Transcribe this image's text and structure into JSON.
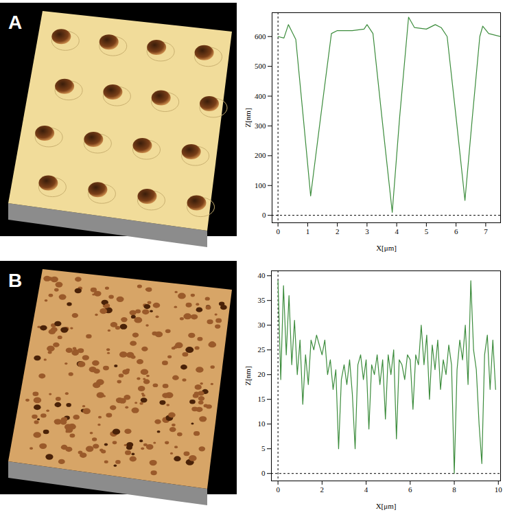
{
  "chart_data": [
    {
      "type": "line",
      "title": "A",
      "color": "#3c8c3c",
      "x_label": "X[μm]",
      "y_label": "Z[nm]",
      "x": [
        0,
        0.2,
        0.35,
        0.45,
        0.6,
        0.85,
        1.1,
        1.45,
        1.8,
        2.0,
        2.5,
        2.9,
        3.0,
        3.2,
        3.5,
        3.85,
        4.1,
        4.4,
        4.6,
        5.0,
        5.3,
        5.5,
        5.7,
        6.0,
        6.3,
        6.55,
        6.8,
        6.9,
        7.1,
        7.5
      ],
      "values": [
        600,
        595,
        640,
        620,
        590,
        330,
        65,
        340,
        610,
        620,
        620,
        625,
        640,
        610,
        330,
        10,
        330,
        665,
        630,
        625,
        640,
        630,
        600,
        330,
        50,
        330,
        600,
        635,
        610,
        600
      ],
      "xlim": [
        -0.2,
        7.5
      ],
      "ylim": [
        -25,
        680
      ],
      "xticks": [
        0,
        1,
        2,
        3,
        4,
        5,
        6,
        7
      ],
      "yticks": [
        0,
        100,
        200,
        300,
        400,
        500,
        600
      ]
    },
    {
      "type": "line",
      "title": "B",
      "color": "#3c8c3c",
      "x_label": "X[μm]",
      "y_label": "Z[nm]",
      "x": [
        0,
        0.125,
        0.25,
        0.375,
        0.5,
        0.625,
        0.75,
        0.875,
        1,
        1.125,
        1.25,
        1.375,
        1.5,
        1.625,
        1.75,
        1.875,
        2,
        2.125,
        2.25,
        2.375,
        2.5,
        2.625,
        2.75,
        2.875,
        3,
        3.125,
        3.25,
        3.375,
        3.5,
        3.625,
        3.75,
        3.875,
        4,
        4.125,
        4.25,
        4.375,
        4.5,
        4.625,
        4.75,
        4.875,
        5,
        5.125,
        5.25,
        5.375,
        5.5,
        5.625,
        5.75,
        5.875,
        6,
        6.125,
        6.25,
        6.375,
        6.5,
        6.625,
        6.75,
        6.875,
        7,
        7.125,
        7.25,
        7.375,
        7.5,
        7.625,
        7.75,
        7.875,
        8,
        8.125,
        8.25,
        8.375,
        8.5,
        8.625,
        8.75,
        8.875,
        9,
        9.125,
        9.25,
        9.375,
        9.5,
        9.625,
        9.75,
        9.875
      ],
      "values": [
        39,
        19,
        38,
        24,
        36,
        22,
        31,
        20,
        27,
        14,
        24,
        18,
        27,
        25,
        28,
        26,
        24,
        27,
        20,
        23,
        17,
        21,
        5,
        19,
        22,
        18,
        23,
        16,
        5,
        22,
        24,
        19,
        23,
        9,
        22,
        20,
        24,
        18,
        23,
        11,
        24,
        20,
        25,
        7,
        23,
        22,
        19,
        24,
        23,
        13,
        24,
        22,
        30,
        22,
        28,
        15,
        26,
        21,
        27,
        17,
        23,
        20,
        26,
        22,
        0,
        21,
        27,
        23,
        30,
        18,
        39,
        25,
        21,
        10,
        2,
        24,
        28,
        17,
        27,
        17
      ],
      "xlim": [
        -0.3,
        10.1
      ],
      "ylim": [
        -1.5,
        41
      ],
      "xticks": [
        0,
        2,
        4,
        6,
        8,
        10
      ],
      "yticks": [
        0,
        5,
        10,
        15,
        20,
        25,
        30,
        35,
        40
      ]
    }
  ]
}
